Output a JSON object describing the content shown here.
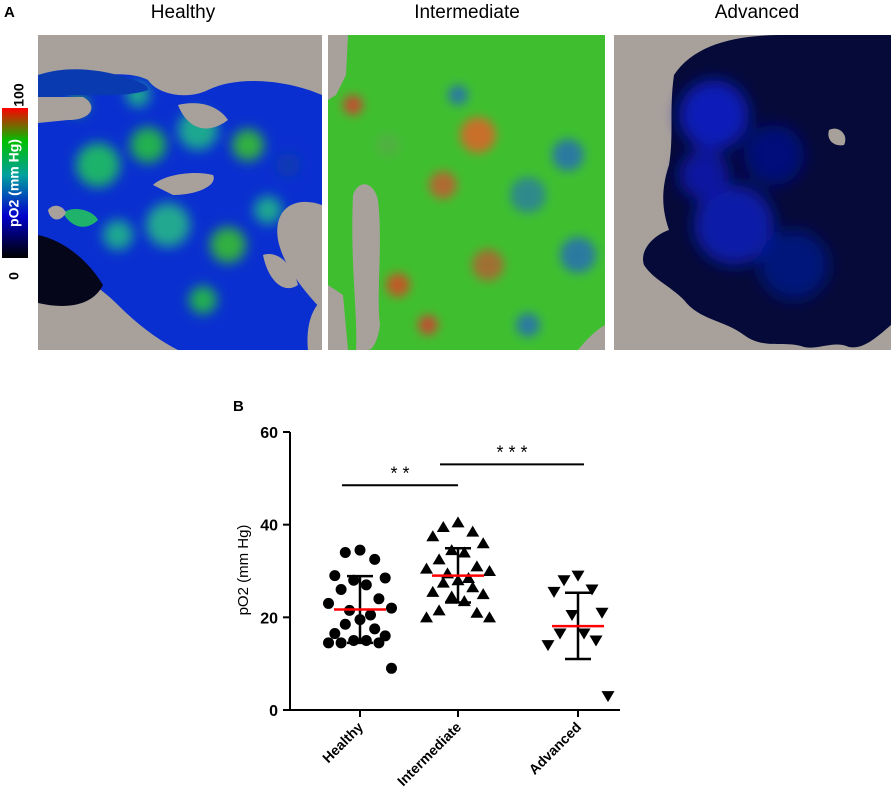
{
  "panel_a": {
    "letter": "A",
    "titles": [
      "Healthy",
      "Intermediate",
      "Advanced"
    ],
    "colorbar": {
      "label": "pO2 (mm Hg)",
      "min_label": "0",
      "max_label": "100",
      "colors": [
        "#000000",
        "#0000cc",
        "#00a0a0",
        "#00cc00",
        "#ff0000"
      ]
    }
  },
  "panel_b": {
    "letter": "B"
  },
  "chart_data": {
    "type": "scatter",
    "title": "",
    "xlabel": "",
    "ylabel": "pO2  (mm Hg)",
    "ylim": [
      0,
      60
    ],
    "yticks": [
      "0",
      "20",
      "40",
      "60"
    ],
    "categories": [
      "Healthy",
      "Intermediate",
      "Advanced"
    ],
    "series": [
      {
        "group": "Healthy",
        "marker": "circle",
        "values": [
          34.5,
          34,
          32.5,
          29,
          28.5,
          28,
          27,
          26,
          24,
          23,
          22,
          21.5,
          20.5,
          19.5,
          18.5,
          17.5,
          16.5,
          16,
          15,
          15,
          14.5,
          14.5,
          14.5,
          9
        ],
        "mean": 21.7,
        "sd_low": 14.5,
        "sd_high": 28.9
      },
      {
        "group": "Intermediate",
        "marker": "triangle-up",
        "values": [
          40.5,
          39.5,
          38.5,
          37.5,
          36,
          34.5,
          34,
          32.5,
          31,
          30.5,
          30,
          29.5,
          28.5,
          28,
          27.5,
          26.5,
          25.5,
          25,
          24.5,
          23.5,
          21.5,
          21,
          20,
          20
        ],
        "mean": 29,
        "sd_low": 23.2,
        "sd_high": 34.9
      },
      {
        "group": "Advanced",
        "marker": "triangle-down",
        "values": [
          29,
          28,
          26,
          25.5,
          21,
          20.5,
          16.5,
          16.5,
          15,
          14,
          3
        ],
        "mean": 18.1,
        "sd_low": 11,
        "sd_high": 25.3
      }
    ],
    "significance": [
      {
        "from": "Healthy",
        "to": "Intermediate",
        "label": "* *",
        "y": 48.5
      },
      {
        "from": "Intermediate",
        "to": "Advanced",
        "label": "* * *",
        "y": 53
      }
    ],
    "mean_line_color": "#ff0000"
  }
}
